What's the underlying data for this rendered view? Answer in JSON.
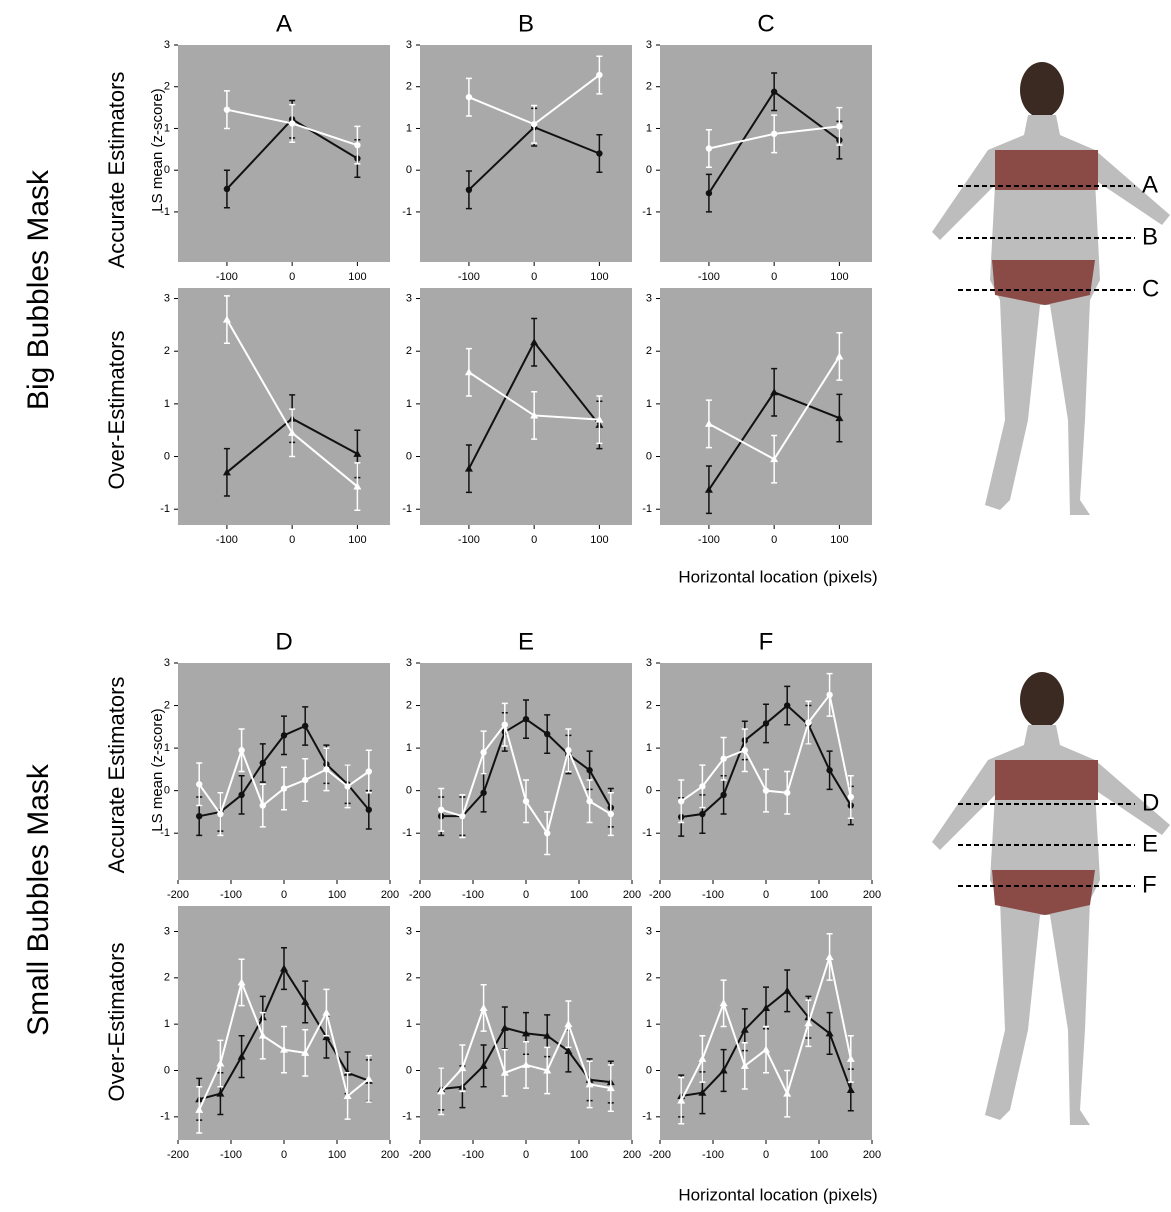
{
  "section_labels": [
    "Big Bubbles Mask",
    "Small Bubbles Mask"
  ],
  "row_labels": [
    "Accurate Estimators",
    "Over-Estimators",
    "Accurate Estimators",
    "Over-Estimators"
  ],
  "y_labels": [
    "LS mean (z-score)",
    "LS mean (z-score)"
  ],
  "x_labels": [
    "Horizontal location (pixels)",
    "Horizontal location (pixels)"
  ],
  "body_labels": [
    [
      "A",
      "B",
      "C"
    ],
    [
      "D",
      "E",
      "F"
    ]
  ],
  "chart_data": [
    {
      "type": "line",
      "title": "A",
      "marker": "circle",
      "x": [
        -100,
        0,
        100
      ],
      "xlim": [
        -175,
        150
      ],
      "xticks": [
        -100,
        0,
        100
      ],
      "ylim": [
        -2.2,
        3
      ],
      "yticks": [
        -1,
        0,
        1,
        2,
        3
      ],
      "background": "#a9a9a9",
      "series": [
        {
          "color": "#111111",
          "values": [
            -0.45,
            1.22,
            0.28
          ],
          "errors": [
            0.45,
            0.45,
            0.45
          ]
        },
        {
          "color": "#ffffff",
          "values": [
            1.45,
            1.12,
            0.6
          ],
          "errors": [
            0.45,
            0.45,
            0.45
          ]
        }
      ]
    },
    {
      "type": "line",
      "title": "B",
      "marker": "circle",
      "x": [
        -100,
        0,
        100
      ],
      "xlim": [
        -175,
        150
      ],
      "xticks": [
        -100,
        0,
        100
      ],
      "ylim": [
        -2.2,
        3
      ],
      "yticks": [
        -1,
        0,
        1,
        2,
        3
      ],
      "background": "#a9a9a9",
      "series": [
        {
          "color": "#111111",
          "values": [
            -0.47,
            1.03,
            0.4
          ],
          "errors": [
            0.45,
            0.45,
            0.45
          ]
        },
        {
          "color": "#ffffff",
          "values": [
            1.75,
            1.1,
            2.28
          ],
          "errors": [
            0.45,
            0.45,
            0.45
          ]
        }
      ]
    },
    {
      "type": "line",
      "title": "C",
      "marker": "circle",
      "x": [
        -100,
        0,
        100
      ],
      "xlim": [
        -175,
        150
      ],
      "xticks": [
        -100,
        0,
        100
      ],
      "ylim": [
        -2.2,
        3
      ],
      "yticks": [
        -1,
        0,
        1,
        2,
        3
      ],
      "background": "#a9a9a9",
      "series": [
        {
          "color": "#111111",
          "values": [
            -0.55,
            1.88,
            0.72
          ],
          "errors": [
            0.45,
            0.45,
            0.45
          ]
        },
        {
          "color": "#ffffff",
          "values": [
            0.52,
            0.87,
            1.05
          ],
          "errors": [
            0.45,
            0.45,
            0.45
          ]
        }
      ]
    },
    {
      "type": "line",
      "marker": "triangle",
      "x": [
        -100,
        0,
        100
      ],
      "xlim": [
        -175,
        150
      ],
      "xticks": [
        -100,
        0,
        100
      ],
      "ylim": [
        -1.3,
        3.2
      ],
      "yticks": [
        -1,
        0,
        1,
        2,
        3
      ],
      "background": "#a9a9a9",
      "series": [
        {
          "color": "#111111",
          "values": [
            -0.3,
            0.72,
            0.05
          ],
          "errors": [
            0.45,
            0.45,
            0.45
          ]
        },
        {
          "color": "#ffffff",
          "values": [
            2.6,
            0.45,
            -0.57
          ],
          "errors": [
            0.45,
            0.45,
            0.45
          ]
        }
      ]
    },
    {
      "type": "line",
      "marker": "triangle",
      "x": [
        -100,
        0,
        100
      ],
      "xlim": [
        -175,
        150
      ],
      "xticks": [
        -100,
        0,
        100
      ],
      "ylim": [
        -1.3,
        3.2
      ],
      "yticks": [
        -1,
        0,
        1,
        2,
        3
      ],
      "background": "#a9a9a9",
      "series": [
        {
          "color": "#111111",
          "values": [
            -0.23,
            2.17,
            0.6
          ],
          "errors": [
            0.45,
            0.45,
            0.45
          ]
        },
        {
          "color": "#ffffff",
          "values": [
            1.6,
            0.78,
            0.7
          ],
          "errors": [
            0.45,
            0.45,
            0.45
          ]
        }
      ]
    },
    {
      "type": "line",
      "marker": "triangle",
      "x": [
        -100,
        0,
        100
      ],
      "xlim": [
        -175,
        150
      ],
      "xticks": [
        -100,
        0,
        100
      ],
      "ylim": [
        -1.3,
        3.2
      ],
      "yticks": [
        -1,
        0,
        1,
        2,
        3
      ],
      "background": "#a9a9a9",
      "series": [
        {
          "color": "#111111",
          "values": [
            -0.63,
            1.22,
            0.73
          ],
          "errors": [
            0.45,
            0.45,
            0.45
          ]
        },
        {
          "color": "#ffffff",
          "values": [
            0.62,
            -0.05,
            1.9
          ],
          "errors": [
            0.45,
            0.45,
            0.45
          ]
        }
      ]
    },
    {
      "type": "line",
      "title": "D",
      "marker": "circle",
      "x": [
        -160,
        -120,
        -80,
        -40,
        0,
        40,
        80,
        120,
        160
      ],
      "xlim": [
        -200,
        200
      ],
      "xticks": [
        -200,
        -100,
        0,
        100,
        200
      ],
      "ylim": [
        -2.1,
        3
      ],
      "yticks": [
        -1,
        0,
        1,
        2,
        3
      ],
      "background": "#a9a9a9",
      "series": [
        {
          "color": "#111111",
          "values": [
            -0.6,
            -0.5,
            -0.1,
            0.65,
            1.3,
            1.52,
            0.62,
            0.15,
            -0.45
          ],
          "errors": [
            0.45,
            0.45,
            0.45,
            0.45,
            0.45,
            0.45,
            0.45,
            0.45,
            0.45
          ]
        },
        {
          "color": "#ffffff",
          "values": [
            0.15,
            -0.55,
            0.95,
            -0.35,
            0.05,
            0.25,
            0.5,
            0.1,
            0.45
          ],
          "errors": [
            0.5,
            0.5,
            0.5,
            0.5,
            0.5,
            0.5,
            0.5,
            0.5,
            0.5
          ]
        }
      ]
    },
    {
      "type": "line",
      "title": "E",
      "marker": "circle",
      "x": [
        -160,
        -120,
        -80,
        -40,
        0,
        40,
        80,
        120,
        160
      ],
      "xlim": [
        -200,
        200
      ],
      "xticks": [
        -200,
        -100,
        0,
        100,
        200
      ],
      "ylim": [
        -2.1,
        3
      ],
      "yticks": [
        -1,
        0,
        1,
        2,
        3
      ],
      "background": "#a9a9a9",
      "series": [
        {
          "color": "#111111",
          "values": [
            -0.6,
            -0.6,
            -0.05,
            1.38,
            1.68,
            1.33,
            0.85,
            0.48,
            -0.4
          ],
          "errors": [
            0.45,
            0.45,
            0.45,
            0.45,
            0.45,
            0.45,
            0.45,
            0.45,
            0.45
          ]
        },
        {
          "color": "#ffffff",
          "values": [
            -0.45,
            -0.6,
            0.9,
            1.55,
            -0.25,
            -1.0,
            0.95,
            -0.25,
            -0.55
          ],
          "errors": [
            0.5,
            0.5,
            0.5,
            0.5,
            0.5,
            0.5,
            0.5,
            0.5,
            0.5
          ]
        }
      ]
    },
    {
      "type": "line",
      "title": "F",
      "marker": "circle",
      "x": [
        -160,
        -120,
        -80,
        -40,
        0,
        40,
        80,
        120,
        160
      ],
      "xlim": [
        -200,
        200
      ],
      "xticks": [
        -200,
        -100,
        0,
        100,
        200
      ],
      "ylim": [
        -2.1,
        3
      ],
      "yticks": [
        -1,
        0,
        1,
        2,
        3
      ],
      "background": "#a9a9a9",
      "series": [
        {
          "color": "#111111",
          "values": [
            -0.62,
            -0.55,
            -0.1,
            1.18,
            1.58,
            2.0,
            1.55,
            0.48,
            -0.35
          ],
          "errors": [
            0.45,
            0.45,
            0.45,
            0.45,
            0.45,
            0.45,
            0.45,
            0.45,
            0.45
          ]
        },
        {
          "color": "#ffffff",
          "values": [
            -0.25,
            0.1,
            0.75,
            0.95,
            0.0,
            -0.05,
            1.6,
            2.25,
            -0.15
          ],
          "errors": [
            0.5,
            0.5,
            0.5,
            0.5,
            0.5,
            0.5,
            0.5,
            0.5,
            0.5
          ]
        }
      ]
    },
    {
      "type": "line",
      "marker": "triangle",
      "x": [
        -160,
        -120,
        -80,
        -40,
        0,
        40,
        80,
        120,
        160
      ],
      "xlim": [
        -200,
        200
      ],
      "xticks": [
        -200,
        -100,
        0,
        100,
        200
      ],
      "ylim": [
        -1.5,
        3.55
      ],
      "yticks": [
        -1,
        0,
        1,
        2,
        3
      ],
      "background": "#a9a9a9",
      "series": [
        {
          "color": "#111111",
          "values": [
            -0.62,
            -0.5,
            0.3,
            1.15,
            2.2,
            1.48,
            0.72,
            -0.05,
            -0.22
          ],
          "errors": [
            0.45,
            0.45,
            0.45,
            0.45,
            0.45,
            0.45,
            0.45,
            0.45,
            0.45
          ]
        },
        {
          "color": "#ffffff",
          "values": [
            -0.85,
            0.15,
            1.9,
            0.75,
            0.45,
            0.38,
            1.25,
            -0.55,
            -0.18
          ],
          "errors": [
            0.5,
            0.5,
            0.5,
            0.5,
            0.5,
            0.5,
            0.5,
            0.5,
            0.5
          ]
        }
      ]
    },
    {
      "type": "line",
      "marker": "triangle",
      "x": [
        -160,
        -120,
        -80,
        -40,
        0,
        40,
        80,
        120,
        160
      ],
      "xlim": [
        -200,
        200
      ],
      "xticks": [
        -200,
        -100,
        0,
        100,
        200
      ],
      "ylim": [
        -1.5,
        3.55
      ],
      "yticks": [
        -1,
        0,
        1,
        2,
        3
      ],
      "background": "#a9a9a9",
      "series": [
        {
          "color": "#111111",
          "values": [
            -0.4,
            -0.35,
            0.1,
            0.92,
            0.8,
            0.75,
            0.42,
            -0.2,
            -0.25
          ],
          "errors": [
            0.45,
            0.45,
            0.45,
            0.45,
            0.45,
            0.45,
            0.45,
            0.45,
            0.45
          ]
        },
        {
          "color": "#ffffff",
          "values": [
            -0.45,
            0.05,
            1.35,
            -0.05,
            0.12,
            0.0,
            1.0,
            -0.3,
            -0.38
          ],
          "errors": [
            0.5,
            0.5,
            0.5,
            0.5,
            0.5,
            0.5,
            0.5,
            0.5,
            0.5
          ]
        }
      ]
    },
    {
      "type": "line",
      "marker": "triangle",
      "x": [
        -160,
        -120,
        -80,
        -40,
        0,
        40,
        80,
        120,
        160
      ],
      "xlim": [
        -200,
        200
      ],
      "xticks": [
        -200,
        -100,
        0,
        100,
        200
      ],
      "ylim": [
        -1.5,
        3.55
      ],
      "yticks": [
        -1,
        0,
        1,
        2,
        3
      ],
      "background": "#a9a9a9",
      "series": [
        {
          "color": "#111111",
          "values": [
            -0.55,
            -0.48,
            0.0,
            0.88,
            1.35,
            1.72,
            1.15,
            0.8,
            -0.42
          ],
          "errors": [
            0.45,
            0.45,
            0.45,
            0.45,
            0.45,
            0.45,
            0.45,
            0.45,
            0.45
          ]
        },
        {
          "color": "#ffffff",
          "values": [
            -0.65,
            0.25,
            1.45,
            0.1,
            0.45,
            -0.5,
            1.02,
            2.45,
            0.25
          ],
          "errors": [
            0.5,
            0.5,
            0.5,
            0.5,
            0.5,
            0.5,
            0.5,
            0.5,
            0.5
          ]
        }
      ]
    }
  ]
}
